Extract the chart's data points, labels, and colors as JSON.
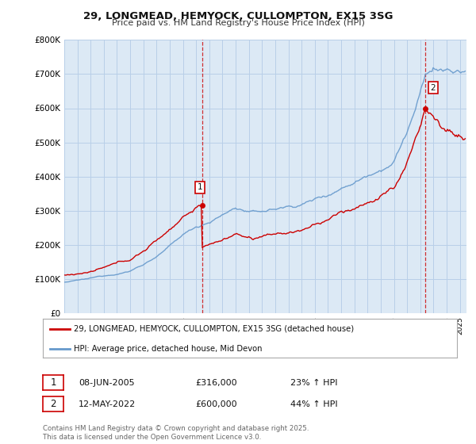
{
  "title1": "29, LONGMEAD, HEMYOCK, CULLOMPTON, EX15 3SG",
  "title2": "Price paid vs. HM Land Registry's House Price Index (HPI)",
  "legend_line1": "29, LONGMEAD, HEMYOCK, CULLOMPTON, EX15 3SG (detached house)",
  "legend_line2": "HPI: Average price, detached house, Mid Devon",
  "annotation1_date": "08-JUN-2005",
  "annotation1_price": "£316,000",
  "annotation1_hpi": "23% ↑ HPI",
  "annotation2_date": "12-MAY-2022",
  "annotation2_price": "£600,000",
  "annotation2_hpi": "44% ↑ HPI",
  "footer": "Contains HM Land Registry data © Crown copyright and database right 2025.\nThis data is licensed under the Open Government Licence v3.0.",
  "property_color": "#cc0000",
  "hpi_color": "#6699cc",
  "vline_color": "#cc0000",
  "ylim": [
    0,
    800000
  ],
  "yticks": [
    0,
    100000,
    200000,
    300000,
    400000,
    500000,
    600000,
    700000,
    800000
  ],
  "ytick_labels": [
    "£0",
    "£100K",
    "£200K",
    "£300K",
    "£400K",
    "£500K",
    "£600K",
    "£700K",
    "£800K"
  ],
  "xmin": 1995.0,
  "xmax": 2025.5,
  "sale1_x": 2005.44,
  "sale1_y": 316000,
  "sale2_x": 2022.36,
  "sale2_y": 600000,
  "chart_bg": "#dce9f5",
  "grid_color": "#b8cfe8"
}
